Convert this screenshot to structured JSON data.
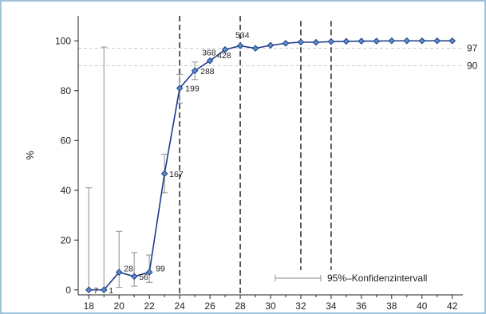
{
  "chart_data": {
    "type": "line",
    "title": "",
    "xlabel": "",
    "ylabel": "%",
    "xlim": [
      17.3,
      42.7
    ],
    "ylim": [
      -2,
      110
    ],
    "xticks": [
      18,
      20,
      22,
      24,
      26,
      28,
      30,
      32,
      34,
      36,
      38,
      40,
      42
    ],
    "yticks": [
      0,
      20,
      40,
      60,
      80,
      100
    ],
    "grid": false,
    "series": [
      {
        "x": [
          18,
          19,
          20,
          21,
          22,
          23,
          24,
          25,
          26,
          27,
          28,
          29,
          30,
          31,
          32,
          33,
          34,
          35,
          36,
          37,
          38,
          39,
          40,
          41,
          42
        ],
        "values": [
          0,
          0,
          7.1,
          5.4,
          7.1,
          46.7,
          81,
          88,
          92,
          96.5,
          98,
          97,
          98.2,
          99,
          99.5,
          99.4,
          99.7,
          99.8,
          99.9,
          99.9,
          100,
          100,
          100,
          100,
          100
        ],
        "ci_low": [
          0,
          0,
          1,
          1.5,
          3,
          39,
          75,
          84.5,
          null,
          null,
          null,
          null,
          null,
          null,
          null,
          null,
          null,
          null,
          null,
          null,
          null,
          null,
          null,
          null,
          null
        ],
        "ci_high": [
          41,
          97.5,
          23.5,
          15,
          14,
          54.5,
          86.5,
          91.5,
          null,
          null,
          null,
          null,
          null,
          null,
          null,
          null,
          null,
          null,
          null,
          null,
          null,
          null,
          null,
          null,
          null
        ]
      }
    ],
    "point_labels": [
      {
        "x": 18,
        "y": 0,
        "text": "7"
      },
      {
        "x": 19,
        "y": 0,
        "text": "1"
      },
      {
        "x": 20,
        "y": 7.1,
        "text": "28"
      },
      {
        "x": 21,
        "y": 5.4,
        "text": "56"
      },
      {
        "x": 22,
        "y": 7.1,
        "text": "99"
      },
      {
        "x": 23,
        "y": 46.7,
        "text": "167"
      },
      {
        "x": 24,
        "y": 81,
        "text": "199"
      },
      {
        "x": 25,
        "y": 88,
        "text": "288"
      },
      {
        "x": 26,
        "y": 92,
        "text": "368"
      },
      {
        "x": 27,
        "y": 96.5,
        "text": "428"
      },
      {
        "x": 28,
        "y": 98,
        "text": "534"
      }
    ],
    "vertical_lines": [
      24,
      28,
      32,
      34
    ],
    "reference_lines": [
      {
        "y": 97,
        "label": "97"
      },
      {
        "y": 90,
        "label": "90"
      }
    ],
    "legend": {
      "placement": "bottom-right",
      "label": "95%–Konfidenzintervall"
    },
    "colors": {
      "line": "#1f3b8a",
      "marker": "#5b8fc7",
      "ci": "#a0a0a0",
      "vline": "#333333",
      "refline": "#cccccc"
    }
  }
}
